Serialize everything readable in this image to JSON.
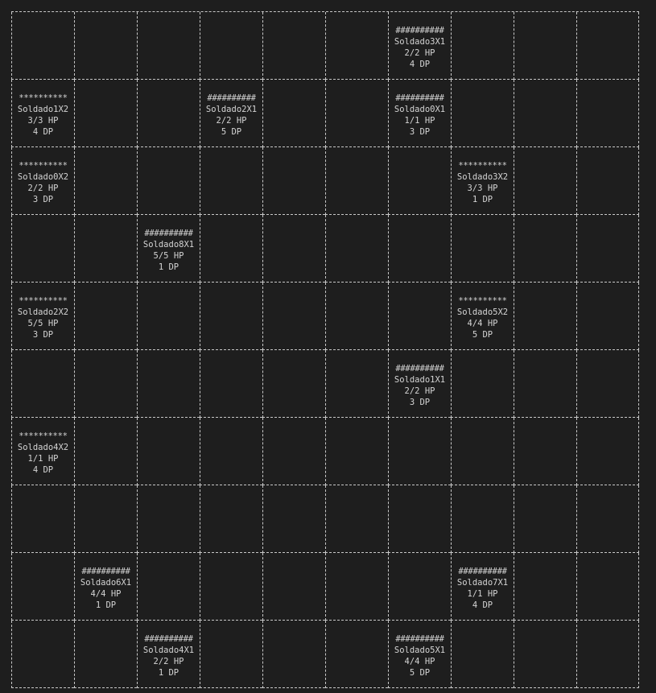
{
  "board": {
    "rows": 10,
    "cols": 10,
    "units": [
      {
        "row": 0,
        "col": 6,
        "marker": "##########",
        "name": "Soldado3X1",
        "hp": "2/2 HP",
        "dp": "4 DP"
      },
      {
        "row": 1,
        "col": 0,
        "marker": "**********",
        "name": "Soldado1X2",
        "hp": "3/3 HP",
        "dp": "4 DP"
      },
      {
        "row": 1,
        "col": 3,
        "marker": "##########",
        "name": "Soldado2X1",
        "hp": "2/2 HP",
        "dp": "5 DP"
      },
      {
        "row": 1,
        "col": 6,
        "marker": "##########",
        "name": "Soldado0X1",
        "hp": "1/1 HP",
        "dp": "3 DP"
      },
      {
        "row": 2,
        "col": 0,
        "marker": "**********",
        "name": "Soldado0X2",
        "hp": "2/2 HP",
        "dp": "3 DP"
      },
      {
        "row": 2,
        "col": 7,
        "marker": "**********",
        "name": "Soldado3X2",
        "hp": "3/3 HP",
        "dp": "1 DP"
      },
      {
        "row": 3,
        "col": 2,
        "marker": "##########",
        "name": "Soldado8X1",
        "hp": "5/5 HP",
        "dp": "1 DP"
      },
      {
        "row": 4,
        "col": 0,
        "marker": "**********",
        "name": "Soldado2X2",
        "hp": "5/5 HP",
        "dp": "3 DP"
      },
      {
        "row": 4,
        "col": 7,
        "marker": "**********",
        "name": "Soldado5X2",
        "hp": "4/4 HP",
        "dp": "5 DP"
      },
      {
        "row": 5,
        "col": 6,
        "marker": "##########",
        "name": "Soldado1X1",
        "hp": "2/2 HP",
        "dp": "3 DP"
      },
      {
        "row": 6,
        "col": 0,
        "marker": "**********",
        "name": "Soldado4X2",
        "hp": "1/1 HP",
        "dp": "4 DP"
      },
      {
        "row": 8,
        "col": 1,
        "marker": "##########",
        "name": "Soldado6X1",
        "hp": "4/4 HP",
        "dp": "1 DP"
      },
      {
        "row": 8,
        "col": 7,
        "marker": "##########",
        "name": "Soldado7X1",
        "hp": "1/1 HP",
        "dp": "4 DP"
      },
      {
        "row": 9,
        "col": 2,
        "marker": "##########",
        "name": "Soldado4X1",
        "hp": "2/2 HP",
        "dp": "1 DP"
      },
      {
        "row": 9,
        "col": 6,
        "marker": "##########",
        "name": "Soldado5X1",
        "hp": "4/4 HP",
        "dp": "5 DP"
      }
    ]
  },
  "colors": {
    "background": "#1e1e1e",
    "text": "#d4d4d4",
    "grid": "#c8c8c8"
  }
}
